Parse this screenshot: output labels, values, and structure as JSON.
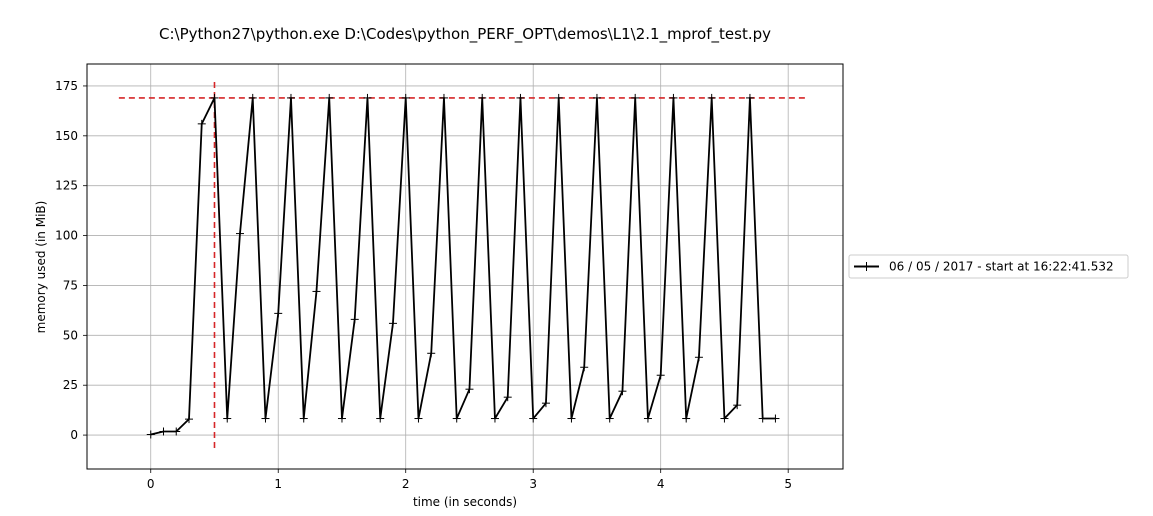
{
  "chart_data": {
    "type": "line",
    "title": "C:\\Python27\\python.exe D:\\Codes\\python_PERF_OPT\\demos\\L1\\2.1_mprof_test.py",
    "xlabel": "time (in seconds)",
    "ylabel": "memory used (in MiB)",
    "xlim": [
      -0.5,
      5.43
    ],
    "ylim": [
      -17,
      186
    ],
    "xticks": [
      0,
      1,
      2,
      3,
      4,
      5
    ],
    "yticks": [
      0,
      25,
      50,
      75,
      100,
      125,
      150,
      175
    ],
    "grid": true,
    "legend_position": "right",
    "series": [
      {
        "name": "06 / 05 / 2017 - start at 16:22:41.532",
        "color": "#000000",
        "marker": "+",
        "x": [
          0.0,
          0.1,
          0.2,
          0.3,
          0.4,
          0.5,
          0.6,
          0.7,
          0.8,
          0.9,
          1.0,
          1.1,
          1.2,
          1.3,
          1.4,
          1.5,
          1.6,
          1.7,
          1.8,
          1.9,
          2.0,
          2.1,
          2.2,
          2.3,
          2.4,
          2.5,
          2.6,
          2.7,
          2.8,
          2.9,
          3.0,
          3.1,
          3.2,
          3.3,
          3.4,
          3.5,
          3.6,
          3.7,
          3.8,
          3.9,
          4.0,
          4.1,
          4.2,
          4.3,
          4.4,
          4.5,
          4.6,
          4.7,
          4.8,
          4.9
        ],
        "y": [
          0.3,
          1.8,
          1.8,
          8.0,
          156,
          169,
          8.3,
          101,
          169,
          8.3,
          61,
          169,
          8.3,
          72,
          169,
          8.3,
          58,
          169,
          8.3,
          56,
          169,
          8.3,
          41,
          169,
          8.3,
          23,
          169,
          8.3,
          19,
          169,
          8.3,
          16,
          169,
          8.3,
          34,
          169,
          8.3,
          22,
          169,
          8.3,
          30,
          169,
          8.3,
          39,
          169,
          8.3,
          15,
          169,
          8.3,
          8.3
        ]
      }
    ],
    "annotations": [
      {
        "kind": "hline",
        "y": 169,
        "x_range": [
          -0.25,
          5.16
        ],
        "color": "#d62728",
        "style": "dashed"
      },
      {
        "kind": "vline",
        "x": 0.5,
        "y_range": [
          -8,
          177
        ],
        "color": "#d62728",
        "style": "dashed"
      }
    ]
  }
}
